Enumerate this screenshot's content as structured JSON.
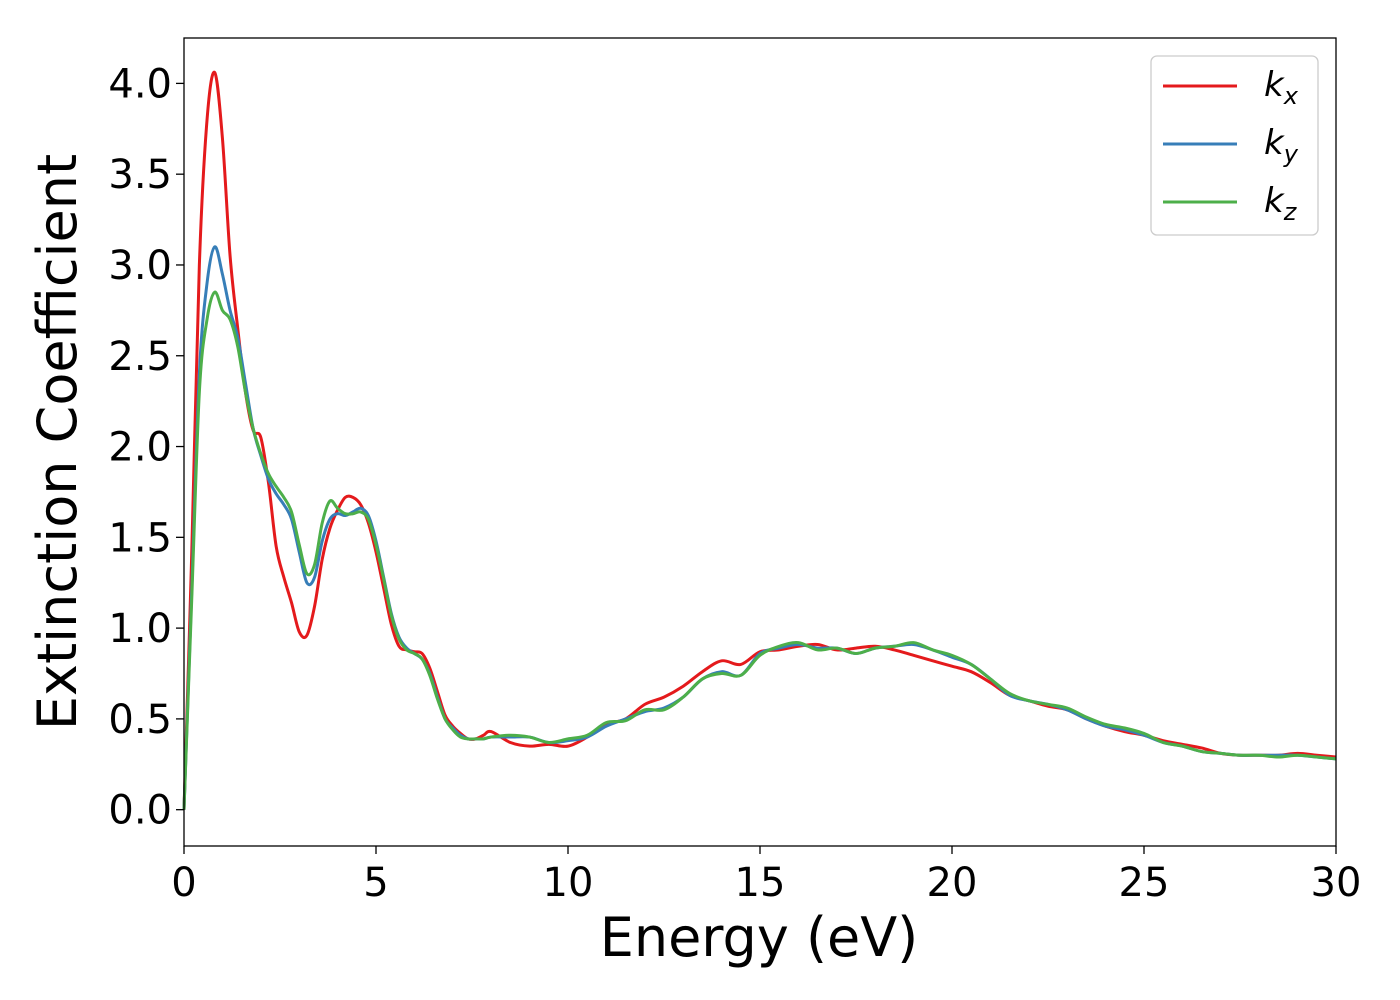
{
  "chart_data": {
    "type": "line",
    "xlabel": "Energy (eV)",
    "ylabel": "Extinction Coefficient",
    "xlim": [
      0,
      30
    ],
    "ylim": [
      -0.2,
      4.25
    ],
    "x_ticks": [
      0,
      5,
      10,
      15,
      20,
      25,
      30
    ],
    "y_ticks": [
      "0.0",
      "0.5",
      "1.0",
      "1.5",
      "2.0",
      "2.5",
      "3.0",
      "3.5",
      "4.0"
    ],
    "grid": false,
    "legend_position": "top-right",
    "x": [
      0,
      0.2,
      0.4,
      0.6,
      0.8,
      1.0,
      1.2,
      1.4,
      1.6,
      1.8,
      2.0,
      2.2,
      2.4,
      2.6,
      2.8,
      3.0,
      3.2,
      3.4,
      3.6,
      3.8,
      4.0,
      4.2,
      4.4,
      4.6,
      4.8,
      5.0,
      5.2,
      5.4,
      5.6,
      5.8,
      6.0,
      6.2,
      6.4,
      6.6,
      6.8,
      7.0,
      7.2,
      7.4,
      7.6,
      7.8,
      8.0,
      8.5,
      9.0,
      9.5,
      10.0,
      10.5,
      11.0,
      11.5,
      12.0,
      12.5,
      13.0,
      13.5,
      14.0,
      14.5,
      15.0,
      15.5,
      16.0,
      16.5,
      17.0,
      17.5,
      18.0,
      18.5,
      19.0,
      19.5,
      20.0,
      20.5,
      21.0,
      21.5,
      22.0,
      22.5,
      23.0,
      23.5,
      24.0,
      24.5,
      25.0,
      25.5,
      26.0,
      26.5,
      27.0,
      27.5,
      28.0,
      28.5,
      29.0,
      29.5,
      30.0
    ],
    "series": [
      {
        "name": "k",
        "subscript": "x",
        "color": "#e41a1c",
        "values": [
          0.0,
          1.4,
          3.0,
          3.8,
          4.06,
          3.7,
          3.05,
          2.65,
          2.3,
          2.09,
          2.05,
          1.8,
          1.45,
          1.28,
          1.14,
          0.98,
          0.96,
          1.12,
          1.38,
          1.55,
          1.65,
          1.72,
          1.72,
          1.68,
          1.58,
          1.42,
          1.22,
          1.02,
          0.9,
          0.88,
          0.87,
          0.86,
          0.78,
          0.65,
          0.52,
          0.46,
          0.42,
          0.39,
          0.39,
          0.41,
          0.43,
          0.37,
          0.35,
          0.36,
          0.35,
          0.4,
          0.47,
          0.5,
          0.58,
          0.62,
          0.68,
          0.76,
          0.82,
          0.8,
          0.87,
          0.88,
          0.9,
          0.91,
          0.88,
          0.89,
          0.9,
          0.88,
          0.85,
          0.82,
          0.79,
          0.76,
          0.7,
          0.63,
          0.6,
          0.57,
          0.55,
          0.5,
          0.46,
          0.43,
          0.41,
          0.38,
          0.36,
          0.34,
          0.31,
          0.3,
          0.3,
          0.3,
          0.31,
          0.3,
          0.29
        ]
      },
      {
        "name": "k",
        "subscript": "y",
        "color": "#377eb8",
        "values": [
          0.0,
          1.2,
          2.4,
          2.9,
          3.1,
          2.95,
          2.75,
          2.6,
          2.35,
          2.1,
          1.95,
          1.82,
          1.74,
          1.68,
          1.6,
          1.42,
          1.25,
          1.28,
          1.48,
          1.6,
          1.63,
          1.62,
          1.64,
          1.66,
          1.62,
          1.48,
          1.28,
          1.08,
          0.95,
          0.89,
          0.86,
          0.83,
          0.75,
          0.62,
          0.5,
          0.45,
          0.41,
          0.39,
          0.39,
          0.39,
          0.4,
          0.4,
          0.4,
          0.37,
          0.38,
          0.4,
          0.46,
          0.5,
          0.54,
          0.56,
          0.62,
          0.72,
          0.76,
          0.74,
          0.86,
          0.89,
          0.91,
          0.89,
          0.89,
          0.86,
          0.89,
          0.9,
          0.91,
          0.88,
          0.84,
          0.8,
          0.72,
          0.63,
          0.6,
          0.58,
          0.55,
          0.5,
          0.46,
          0.44,
          0.41,
          0.37,
          0.35,
          0.32,
          0.31,
          0.3,
          0.3,
          0.3,
          0.3,
          0.29,
          0.28
        ]
      },
      {
        "name": "k",
        "subscript": "z",
        "color": "#4daf4a",
        "values": [
          0.0,
          1.15,
          2.3,
          2.7,
          2.85,
          2.75,
          2.7,
          2.55,
          2.3,
          2.1,
          1.96,
          1.85,
          1.78,
          1.72,
          1.64,
          1.46,
          1.3,
          1.35,
          1.58,
          1.7,
          1.66,
          1.63,
          1.63,
          1.64,
          1.6,
          1.46,
          1.27,
          1.07,
          0.94,
          0.88,
          0.86,
          0.83,
          0.74,
          0.61,
          0.5,
          0.44,
          0.4,
          0.39,
          0.39,
          0.39,
          0.4,
          0.41,
          0.4,
          0.37,
          0.39,
          0.41,
          0.48,
          0.49,
          0.55,
          0.55,
          0.62,
          0.72,
          0.75,
          0.74,
          0.85,
          0.9,
          0.92,
          0.88,
          0.89,
          0.86,
          0.89,
          0.9,
          0.92,
          0.88,
          0.85,
          0.8,
          0.72,
          0.64,
          0.6,
          0.58,
          0.56,
          0.51,
          0.47,
          0.45,
          0.42,
          0.37,
          0.35,
          0.32,
          0.31,
          0.3,
          0.3,
          0.29,
          0.3,
          0.29,
          0.28
        ]
      }
    ]
  }
}
